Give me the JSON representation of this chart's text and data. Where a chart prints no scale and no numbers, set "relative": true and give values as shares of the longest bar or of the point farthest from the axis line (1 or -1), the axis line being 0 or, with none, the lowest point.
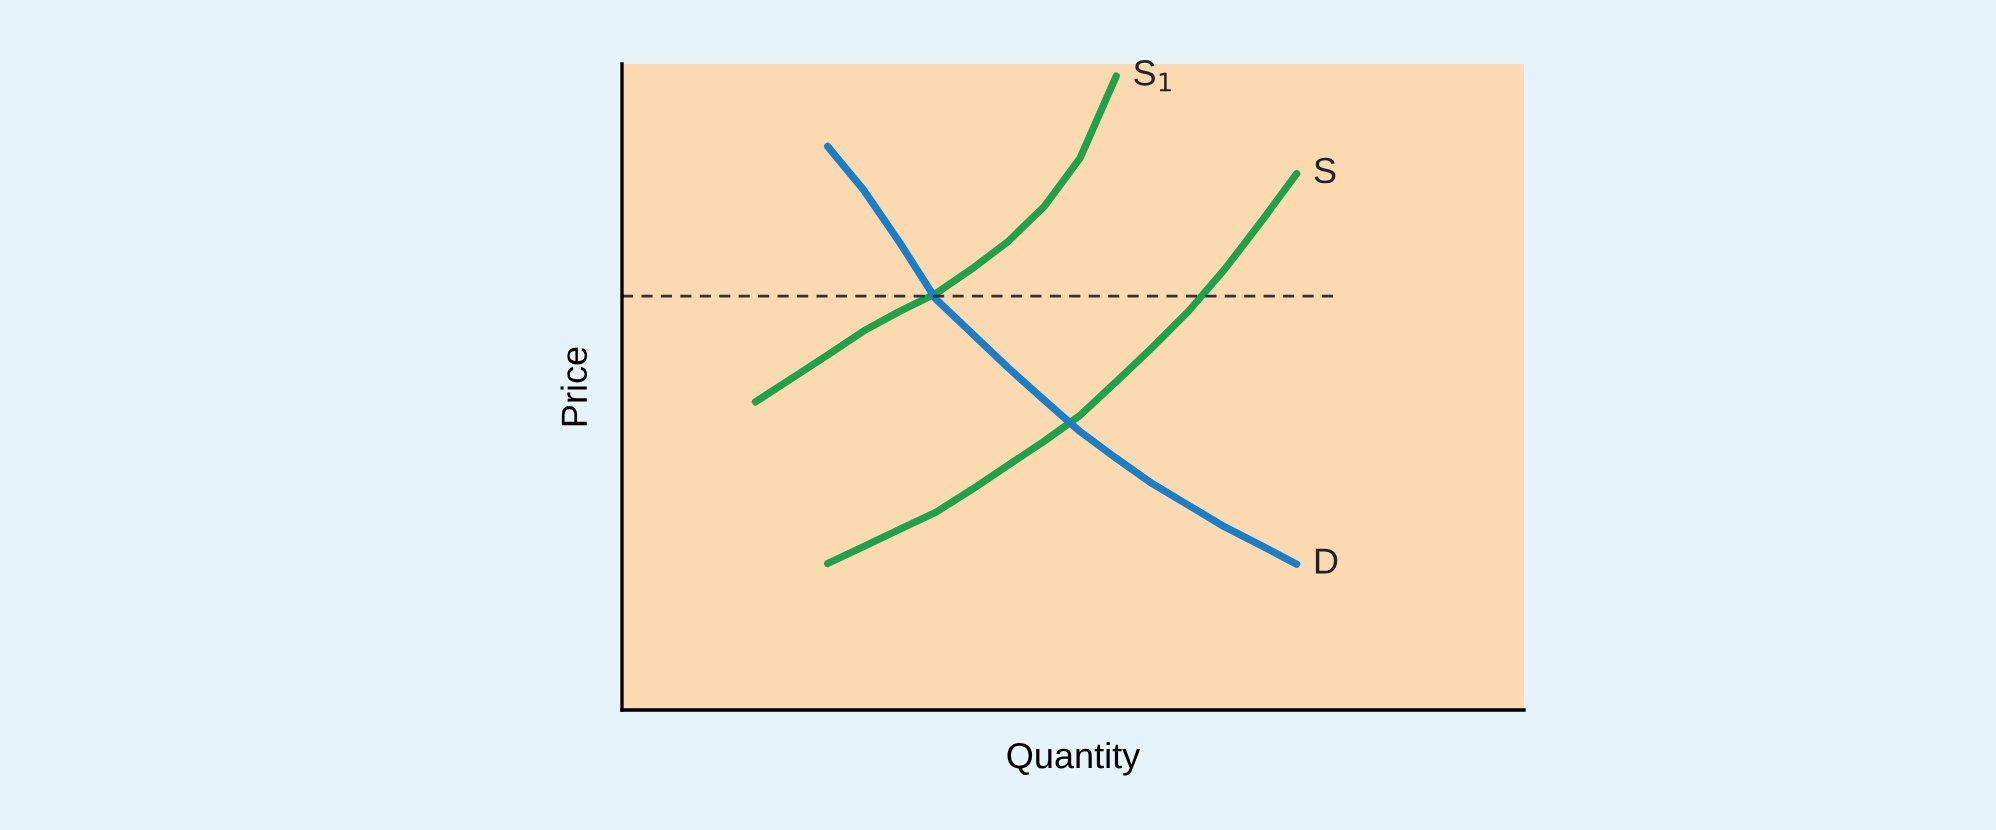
{
  "chart_data": {
    "type": "line",
    "relative": true,
    "xlabel": "Quantity",
    "ylabel": "Price",
    "legend": false,
    "marker": "none",
    "line_style": "solid",
    "categories": [
      null,
      null,
      null,
      null,
      null,
      null,
      null,
      null,
      null,
      null,
      null,
      null,
      null,
      null,
      null,
      null
    ],
    "series": [
      {
        "name": "S$_{1}$",
        "color": "#1fa24a",
        "values": [
          0.486,
          0.523,
          0.56,
          0.598,
          0.629,
          0.657,
          0.696,
          0.739,
          0.794,
          0.871,
          1.0,
          null,
          null,
          null,
          null,
          null
        ]
      },
      {
        "name": "S",
        "color": "#1fa24a",
        "values": [
          null,
          null,
          0.231,
          0.258,
          0.285,
          0.312,
          0.348,
          0.386,
          0.424,
          0.465,
          0.518,
          0.572,
          0.629,
          0.695,
          0.769,
          0.846
        ]
      },
      {
        "name": "D",
        "color": "#1a7fc6",
        "values": [
          null,
          null,
          0.889,
          0.82,
          0.737,
          0.648,
          0.594,
          0.54,
          0.489,
          0.439,
          0.397,
          0.357,
          0.323,
          0.289,
          0.26,
          0.23
        ]
      }
    ],
    "ref_lines": [
      {
        "axis": "y",
        "value": 0.653,
        "color": "#333333",
        "line_style": "dashed"
      }
    ]
  }
}
